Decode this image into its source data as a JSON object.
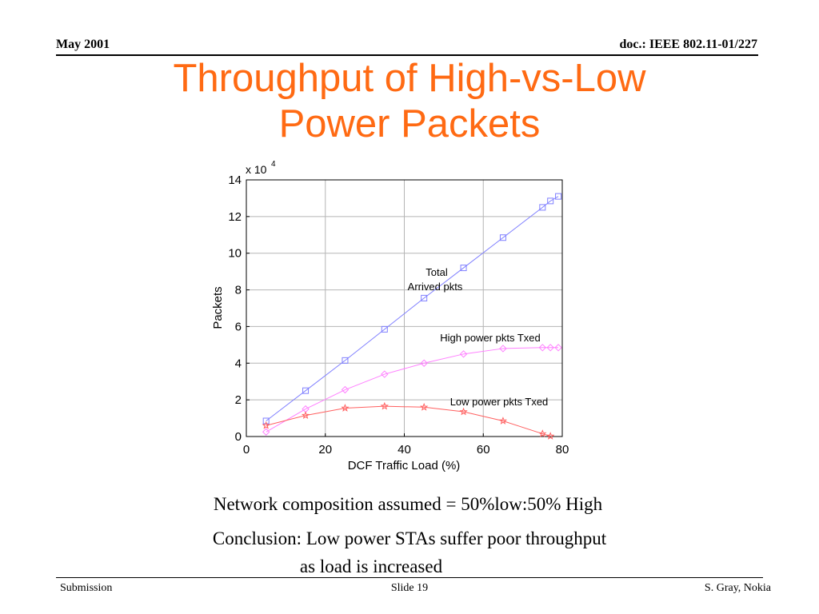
{
  "header": {
    "date": "May 2001",
    "doc": "doc.: IEEE 802.11-01/227"
  },
  "title": {
    "line1": "Throughput of High-vs-Low",
    "line2": "Power Packets"
  },
  "chart_data": {
    "type": "line",
    "xlabel": "DCF Traffic Load (%)",
    "ylabel": "Packets",
    "y_multiplier": "x 10",
    "y_multiplier_exp": "4",
    "xlim": [
      0,
      80
    ],
    "ylim": [
      0,
      14
    ],
    "x_ticks": [
      "0",
      "20",
      "40",
      "60",
      "80"
    ],
    "y_ticks": [
      "0",
      "2",
      "4",
      "6",
      "8",
      "10",
      "12",
      "14"
    ],
    "grid": true,
    "annotations": {
      "total_line1": "Total",
      "total_line2": "Arrived pkts",
      "high": "High power pkts Txed",
      "low": "Low power pkts Txed"
    },
    "series": [
      {
        "key": "total",
        "color": "#8080ff",
        "marker": "square",
        "x": [
          5,
          15,
          25,
          35,
          45,
          55,
          65,
          75,
          77,
          79
        ],
        "y": [
          0.85,
          2.5,
          4.15,
          5.85,
          7.55,
          9.2,
          10.85,
          12.5,
          12.85,
          13.1
        ]
      },
      {
        "key": "high",
        "color": "#ff80ff",
        "marker": "diamond",
        "x": [
          5,
          15,
          25,
          35,
          45,
          55,
          65,
          75,
          77,
          79
        ],
        "y": [
          0.25,
          1.5,
          2.55,
          3.4,
          4.0,
          4.5,
          4.8,
          4.85,
          4.85,
          4.85
        ]
      },
      {
        "key": "low",
        "color": "#ff6060",
        "marker": "star",
        "x": [
          5,
          15,
          25,
          35,
          45,
          55,
          65,
          75,
          77
        ],
        "y": [
          0.6,
          1.15,
          1.55,
          1.65,
          1.6,
          1.35,
          0.85,
          0.15,
          0.02
        ]
      }
    ]
  },
  "body": {
    "line1": "Network composition assumed = 50%low:50% High",
    "line2": "Conclusion: Low power STAs suffer poor throughput",
    "line3": "as load is increased"
  },
  "footer": {
    "left": "Submission",
    "slide": "Slide 19",
    "right": "S. Gray, Nokia"
  }
}
